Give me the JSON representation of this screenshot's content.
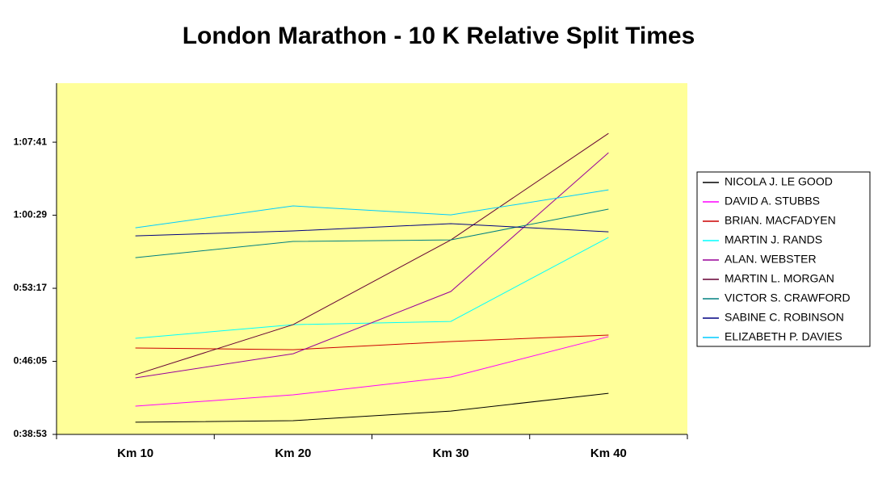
{
  "chart_data": {
    "type": "line",
    "title": "London Marathon - 10 K Relative Split Times",
    "categories": [
      "Km 10",
      "Km 20",
      "Km 30",
      "Km 40"
    ],
    "series": [
      {
        "name": "NICOLA J. LE GOOD",
        "color": "#000000",
        "values": [
          2405,
          2414,
          2471,
          2576
        ]
      },
      {
        "name": "DAVID A. STUBBS",
        "color": "#ff00ff",
        "values": [
          2500,
          2567,
          2672,
          2911
        ]
      },
      {
        "name": "BRIAN. MACFADYEN",
        "color": "#cc0000",
        "values": [
          2844,
          2834,
          2882,
          2920
        ]
      },
      {
        "name": "MARTIN J. RANDS",
        "color": "#00ffff",
        "values": [
          2901,
          2982,
          3001,
          3498
        ]
      },
      {
        "name": "ALAN. WEBSTER",
        "color": "#990099",
        "values": [
          2667,
          2810,
          3178,
          3999
        ]
      },
      {
        "name": "MARTIN L. MORGAN",
        "color": "#660033",
        "values": [
          2686,
          2982,
          3483,
          4113
        ]
      },
      {
        "name": "VICTOR S. CRAWFORD",
        "color": "#008080",
        "values": [
          3378,
          3474,
          3483,
          3665
        ]
      },
      {
        "name": "SABINE C. ROBINSON",
        "color": "#000080",
        "values": [
          3507,
          3536,
          3579,
          3531
        ]
      },
      {
        "name": "ELIZABETH P. DAVIES",
        "color": "#00ccff",
        "values": [
          3555,
          3684,
          3631,
          3779
        ]
      }
    ],
    "ylim": [
      2333,
      4410
    ],
    "yticks": [
      {
        "value": 2333,
        "label": "0:38:53"
      },
      {
        "value": 2765,
        "label": "0:46:05"
      },
      {
        "value": 3197,
        "label": "0:53:17"
      },
      {
        "value": 3629,
        "label": "1:00:29"
      },
      {
        "value": 4061,
        "label": "1:07:41"
      }
    ],
    "grid": false,
    "legend": "right",
    "background": "#ffff99"
  }
}
